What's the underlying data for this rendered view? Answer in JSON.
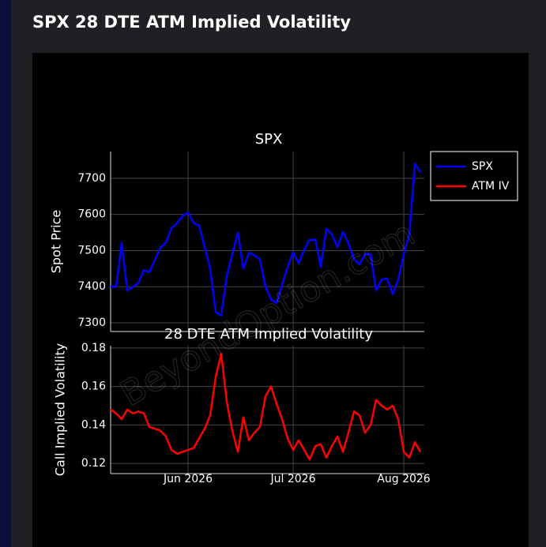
{
  "page": {
    "title": "SPX 28 DTE ATM Implied Volatility"
  },
  "watermark": "BeyondOption.com",
  "chart_data": [
    {
      "type": "line",
      "title": "SPX",
      "y_label": "Spot Price",
      "categories": [
        null,
        null,
        null,
        null,
        null,
        null,
        null,
        null,
        null,
        null,
        null,
        null,
        null,
        null,
        null,
        null,
        null,
        null,
        null,
        null,
        null,
        null,
        null,
        null,
        null,
        null,
        null,
        null,
        null,
        null,
        null,
        null,
        null,
        null,
        null,
        null,
        null,
        null,
        null,
        null,
        null,
        null,
        null,
        null,
        null,
        null,
        null,
        null,
        null,
        null,
        null,
        null,
        null,
        null,
        null,
        null,
        null
      ],
      "series": [
        {
          "name": "SPX",
          "color": "#0000ff",
          "values": [
            7400,
            7400,
            7521,
            7390,
            7399,
            7410,
            7446,
            7440,
            7474,
            7508,
            7522,
            7562,
            7575,
            7596,
            7605,
            7577,
            7569,
            7510,
            7450,
            7330,
            7320,
            7430,
            7490,
            7550,
            7450,
            7494,
            7487,
            7475,
            7400,
            7365,
            7355,
            7405,
            7455,
            7495,
            7465,
            7502,
            7530,
            7530,
            7455,
            7560,
            7545,
            7510,
            7552,
            7520,
            7475,
            7462,
            7490,
            7490,
            7390,
            7420,
            7422,
            7380,
            7420,
            7490,
            7545,
            7740,
            7717
          ]
        }
      ],
      "ylim": [
        7276,
        7774
      ],
      "yticks": [
        7300,
        7400,
        7500,
        7600,
        7700
      ],
      "grid": true,
      "legend": "top-right"
    },
    {
      "type": "line",
      "title": "28 DTE ATM Implied Volatility",
      "y_label": "Call Implied Volatility",
      "categories": [
        null,
        null,
        null,
        null,
        null,
        null,
        null,
        null,
        null,
        null,
        null,
        null,
        null,
        null,
        "Jun 2026",
        null,
        null,
        null,
        null,
        null,
        null,
        null,
        null,
        null,
        null,
        null,
        null,
        null,
        null,
        null,
        null,
        null,
        null,
        "Jul 2026",
        null,
        null,
        null,
        null,
        null,
        null,
        null,
        null,
        null,
        null,
        null,
        null,
        null,
        null,
        null,
        null,
        null,
        null,
        null,
        "Aug 2026",
        null,
        null,
        null
      ],
      "series": [
        {
          "name": "ATM IV",
          "color": "#ff0000",
          "values": [
            0.148,
            0.146,
            0.143,
            0.148,
            0.146,
            0.147,
            0.146,
            0.139,
            0.138,
            0.137,
            0.134,
            0.127,
            0.125,
            0.126,
            0.127,
            0.128,
            0.133,
            0.138,
            0.145,
            0.165,
            0.177,
            0.152,
            0.137,
            0.126,
            0.144,
            0.132,
            0.136,
            0.139,
            0.155,
            0.16,
            0.151,
            0.143,
            0.133,
            0.127,
            0.132,
            0.127,
            0.122,
            0.129,
            0.13,
            0.123,
            0.129,
            0.134,
            0.126,
            0.136,
            0.147,
            0.145,
            0.136,
            0.14,
            0.153,
            0.15,
            0.148,
            0.15,
            0.143,
            0.126,
            0.123,
            0.131,
            0.126
          ]
        }
      ],
      "ylim": [
        0.1147,
        0.1812
      ],
      "yticks": [
        0.12,
        0.14,
        0.16,
        0.18
      ],
      "grid": true
    }
  ]
}
